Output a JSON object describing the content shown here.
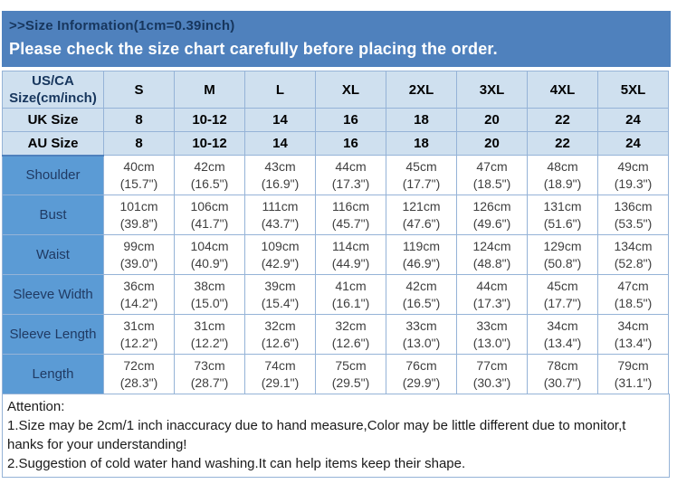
{
  "banner": {
    "size_info": ">>Size Information(1cm=0.39inch)",
    "notice": "Please check the size chart carefully before placing the order."
  },
  "table": {
    "corner": {
      "line1": "US/CA",
      "line2": "Size(cm/inch)"
    },
    "size_columns": [
      "S",
      "M",
      "L",
      "XL",
      "2XL",
      "3XL",
      "4XL",
      "5XL"
    ],
    "uk_row": {
      "label": "UK Size",
      "values": [
        "8",
        "10-12",
        "14",
        "16",
        "18",
        "20",
        "22",
        "24"
      ]
    },
    "au_row": {
      "label": "AU Size",
      "values": [
        "8",
        "10-12",
        "14",
        "16",
        "18",
        "20",
        "22",
        "24"
      ]
    },
    "measure_rows": [
      {
        "label": "Shoulder",
        "cm": [
          "40cm",
          "42cm",
          "43cm",
          "44cm",
          "45cm",
          "47cm",
          "48cm",
          "49cm"
        ],
        "inch": [
          "(15.7\")",
          "(16.5\")",
          "(16.9\")",
          "(17.3\")",
          "(17.7\")",
          "(18.5\")",
          "(18.9\")",
          "(19.3\")"
        ]
      },
      {
        "label": "Bust",
        "cm": [
          "101cm",
          "106cm",
          "111cm",
          "116cm",
          "121cm",
          "126cm",
          "131cm",
          "136cm"
        ],
        "inch": [
          "(39.8\")",
          "(41.7\")",
          "(43.7\")",
          "(45.7\")",
          "(47.6\")",
          "(49.6\")",
          "(51.6\")",
          "(53.5\")"
        ]
      },
      {
        "label": "Waist",
        "cm": [
          "99cm",
          "104cm",
          "109cm",
          "114cm",
          "119cm",
          "124cm",
          "129cm",
          "134cm"
        ],
        "inch": [
          "(39.0\")",
          "(40.9\")",
          "(42.9\")",
          "(44.9\")",
          "(46.9\")",
          "(48.8\")",
          "(50.8\")",
          "(52.8\")"
        ]
      },
      {
        "label": "Sleeve Width",
        "cm": [
          "36cm",
          "38cm",
          "39cm",
          "41cm",
          "42cm",
          "44cm",
          "45cm",
          "47cm"
        ],
        "inch": [
          "(14.2\")",
          "(15.0\")",
          "(15.4\")",
          "(16.1\")",
          "(16.5\")",
          "(17.3\")",
          "(17.7\")",
          "(18.5\")"
        ]
      },
      {
        "label": "Sleeve Length",
        "cm": [
          "31cm",
          "31cm",
          "32cm",
          "32cm",
          "33cm",
          "33cm",
          "34cm",
          "34cm"
        ],
        "inch": [
          "(12.2\")",
          "(12.2\")",
          "(12.6\")",
          "(12.6\")",
          "(13.0\")",
          "(13.0\")",
          "(13.4\")",
          "(13.4\")"
        ]
      },
      {
        "label": "Length",
        "cm": [
          "72cm",
          "73cm",
          "74cm",
          "75cm",
          "76cm",
          "77cm",
          "78cm",
          "79cm"
        ],
        "inch": [
          "(28.3\")",
          "(28.7\")",
          "(29.1\")",
          "(29.5\")",
          "(29.9\")",
          "(30.3\")",
          "(30.7\")",
          "(31.1\")"
        ]
      }
    ]
  },
  "attention": {
    "lines": [
      "Attention:",
      "1.Size may be 2cm/1 inch inaccuracy due to hand measure,Color may be little different due to monitor,t",
      "hanks for your understanding!",
      "2.Suggestion of cold water hand washing.It can help items keep their shape."
    ]
  },
  "colors": {
    "banner_bg": "#4f81bd",
    "banner_title": "#17365d",
    "banner_notice": "#ffffff",
    "header_bg": "#cfe0ef",
    "label_bg": "#5b9bd5",
    "border": "#95b3d7"
  }
}
